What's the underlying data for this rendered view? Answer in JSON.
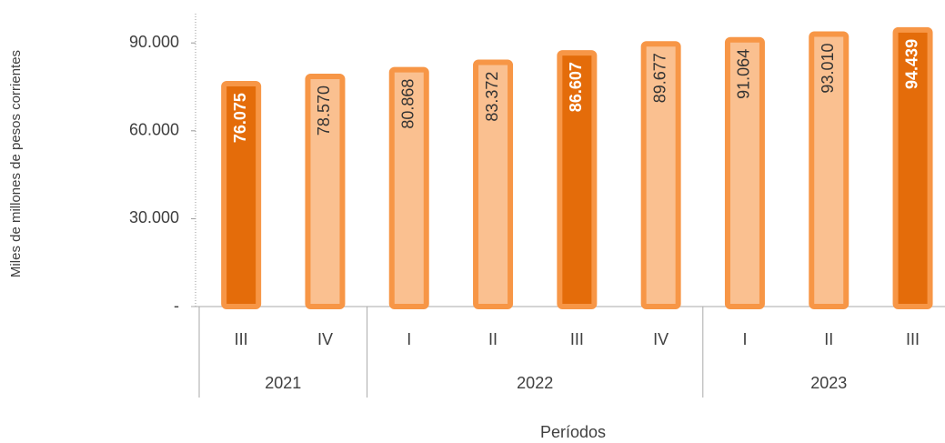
{
  "chart_data": {
    "type": "bar",
    "y_label": "Miles de millones de pesos corrientes",
    "x_label": "Períodos",
    "groups": [
      {
        "label": "2021",
        "categories": [
          "III",
          "IV"
        ]
      },
      {
        "label": "2022",
        "categories": [
          "I",
          "II",
          "III",
          "IV"
        ]
      },
      {
        "label": "2023",
        "categories": [
          "I",
          "II",
          "III"
        ]
      }
    ],
    "values": [
      76075,
      78570,
      80868,
      83372,
      86607,
      89677,
      91064,
      93010,
      94439
    ],
    "value_labels": [
      "76.075",
      "78.570",
      "80.868",
      "83.372",
      "86.607",
      "89.677",
      "91.064",
      "93.010",
      "94.439"
    ],
    "colors": [
      "#e46c0a",
      "#fac090",
      "#fac090",
      "#fac090",
      "#e46c0a",
      "#fac090",
      "#fac090",
      "#fac090",
      "#e46c0a"
    ],
    "label_colors": [
      "#ffffff",
      "#333333",
      "#333333",
      "#333333",
      "#ffffff",
      "#333333",
      "#333333",
      "#333333",
      "#ffffff"
    ],
    "edge_color": "#f79646",
    "ylim": [
      0,
      100000
    ],
    "yticks": [
      {
        "value": 0,
        "label": "-"
      },
      {
        "value": 30000,
        "label": "30.000"
      },
      {
        "value": 60000,
        "label": "60.000"
      },
      {
        "value": 90000,
        "label": "90.000"
      }
    ]
  }
}
